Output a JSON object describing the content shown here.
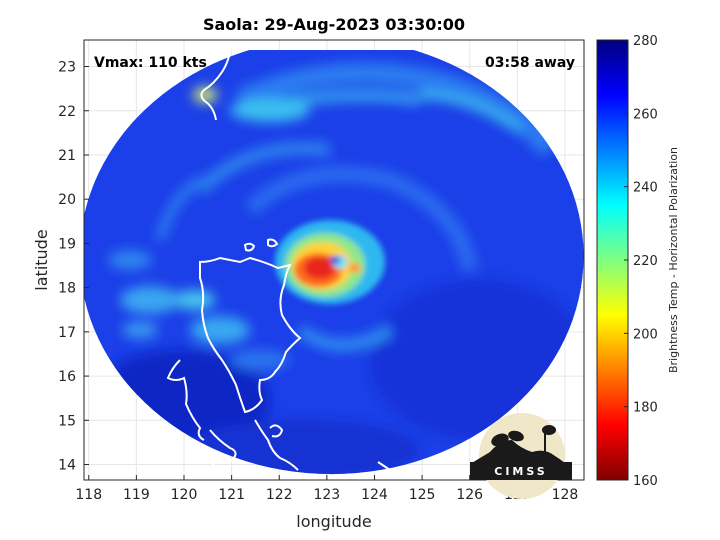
{
  "chart_data": {
    "type": "heatmap",
    "title": "Saola: 29-Aug-2023 03:30:00",
    "xlabel": "longitude",
    "ylabel": "latitude",
    "xlim": [
      117.9,
      128.4
    ],
    "ylim": [
      13.65,
      23.6
    ],
    "xticks": [
      118,
      119,
      120,
      121,
      122,
      123,
      124,
      125,
      126,
      127,
      128
    ],
    "yticks": [
      14,
      15,
      16,
      17,
      18,
      19,
      20,
      21,
      22,
      23
    ],
    "grid": true,
    "annotations": {
      "vmax": "Vmax: 110 kts",
      "time_away": "03:58 away"
    },
    "colorbar": {
      "label": "Brightness Temp - Horizontal Polarization",
      "range": [
        160,
        280
      ],
      "ticks": [
        160,
        180,
        200,
        220,
        240,
        260,
        280
      ],
      "colormap": "jet"
    },
    "storm_center": {
      "lon": 123.2,
      "lat": 18.6
    },
    "coverage_center": {
      "lon": 123.1,
      "lat": 18.6
    },
    "features": [
      {
        "kind": "eyewall",
        "lon": 123.0,
        "lat": 18.4,
        "value": 182
      },
      {
        "kind": "eye",
        "lon": 123.25,
        "lat": 18.75,
        "value": 250
      },
      {
        "kind": "inner-band",
        "lon": 123.4,
        "lat": 18.7,
        "value": 225
      },
      {
        "kind": "outer-band",
        "lon": 121.0,
        "lat": 17.3,
        "value": 240
      },
      {
        "kind": "outer-band",
        "lon": 125.8,
        "lat": 21.7,
        "value": 240
      },
      {
        "kind": "warm-spot",
        "lon": 120.4,
        "lat": 22.3,
        "value": 225
      }
    ],
    "logo": "CIMSS"
  }
}
